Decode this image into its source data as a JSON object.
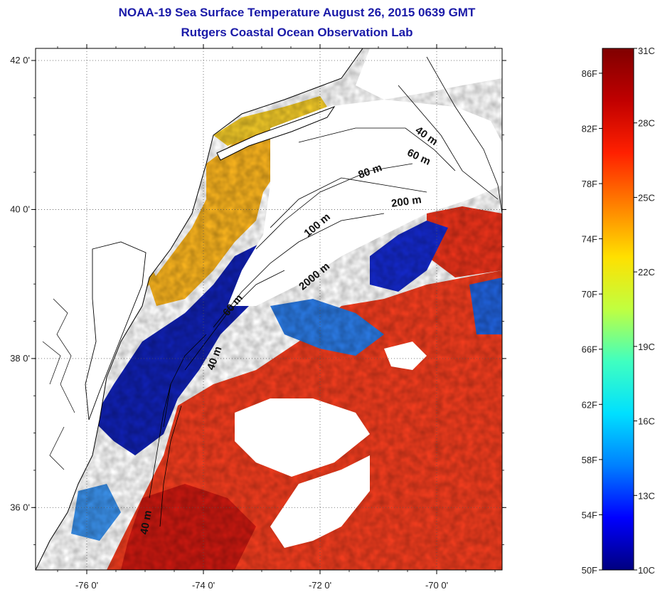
{
  "header": {
    "title": "NOAA-19 Sea Surface Temperature August 26, 2015 0639 GMT",
    "subtitle": "Rutgers Coastal Ocean Observation Lab"
  },
  "map": {
    "lat_ticks": [
      {
        "value": 42,
        "label": "42 0'"
      },
      {
        "value": 40,
        "label": "40 0'"
      },
      {
        "value": 38,
        "label": "38 0'"
      },
      {
        "value": 36,
        "label": "36 0'"
      }
    ],
    "lon_ticks": [
      {
        "value": -76,
        "label": "-76 0'"
      },
      {
        "value": -74,
        "label": "-74 0'"
      },
      {
        "value": -72,
        "label": "-72 0'"
      },
      {
        "value": -70,
        "label": "-70 0'"
      }
    ],
    "contour_labels": [
      {
        "text": "40 m",
        "rotate": 35
      },
      {
        "text": "60 m",
        "rotate": 25
      },
      {
        "text": "80 m",
        "rotate": -20
      },
      {
        "text": "200 m",
        "rotate": -8
      },
      {
        "text": "100 m",
        "rotate": -40
      },
      {
        "text": "2000 m",
        "rotate": -40
      },
      {
        "text": "60 m",
        "rotate": -50
      },
      {
        "text": "40 m",
        "rotate": -70
      },
      {
        "text": "40 m",
        "rotate": -80
      }
    ],
    "colors": {
      "land": "#ffffff",
      "cloud": "#ffffff",
      "coast": "#000000"
    }
  },
  "colorbar": {
    "celsius_labels": [
      "31C",
      "28C",
      "25C",
      "22C",
      "19C",
      "16C",
      "13C",
      "10C"
    ],
    "fahrenheit_labels": [
      "86F",
      "82F",
      "78F",
      "74F",
      "70F",
      "66F",
      "62F",
      "58F",
      "54F",
      "50F"
    ],
    "min_c": 10,
    "max_c": 31,
    "colormap": [
      "#000080",
      "#0000ff",
      "#0080ff",
      "#00e0ff",
      "#40ffc0",
      "#c0ff40",
      "#ffe000",
      "#ff8000",
      "#ff2000",
      "#c00000",
      "#800000"
    ]
  }
}
